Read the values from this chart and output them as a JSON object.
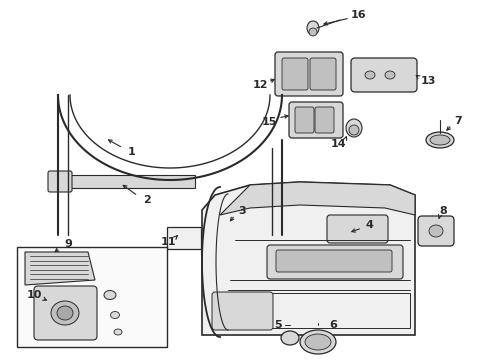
{
  "bg_color": "#ffffff",
  "line_color": "#2a2a2a",
  "fill_light": "#f0f0f0",
  "fill_mid": "#d8d8d8",
  "fill_dark": "#c0c0c0",
  "figw": 4.9,
  "figh": 3.6,
  "dpi": 100
}
